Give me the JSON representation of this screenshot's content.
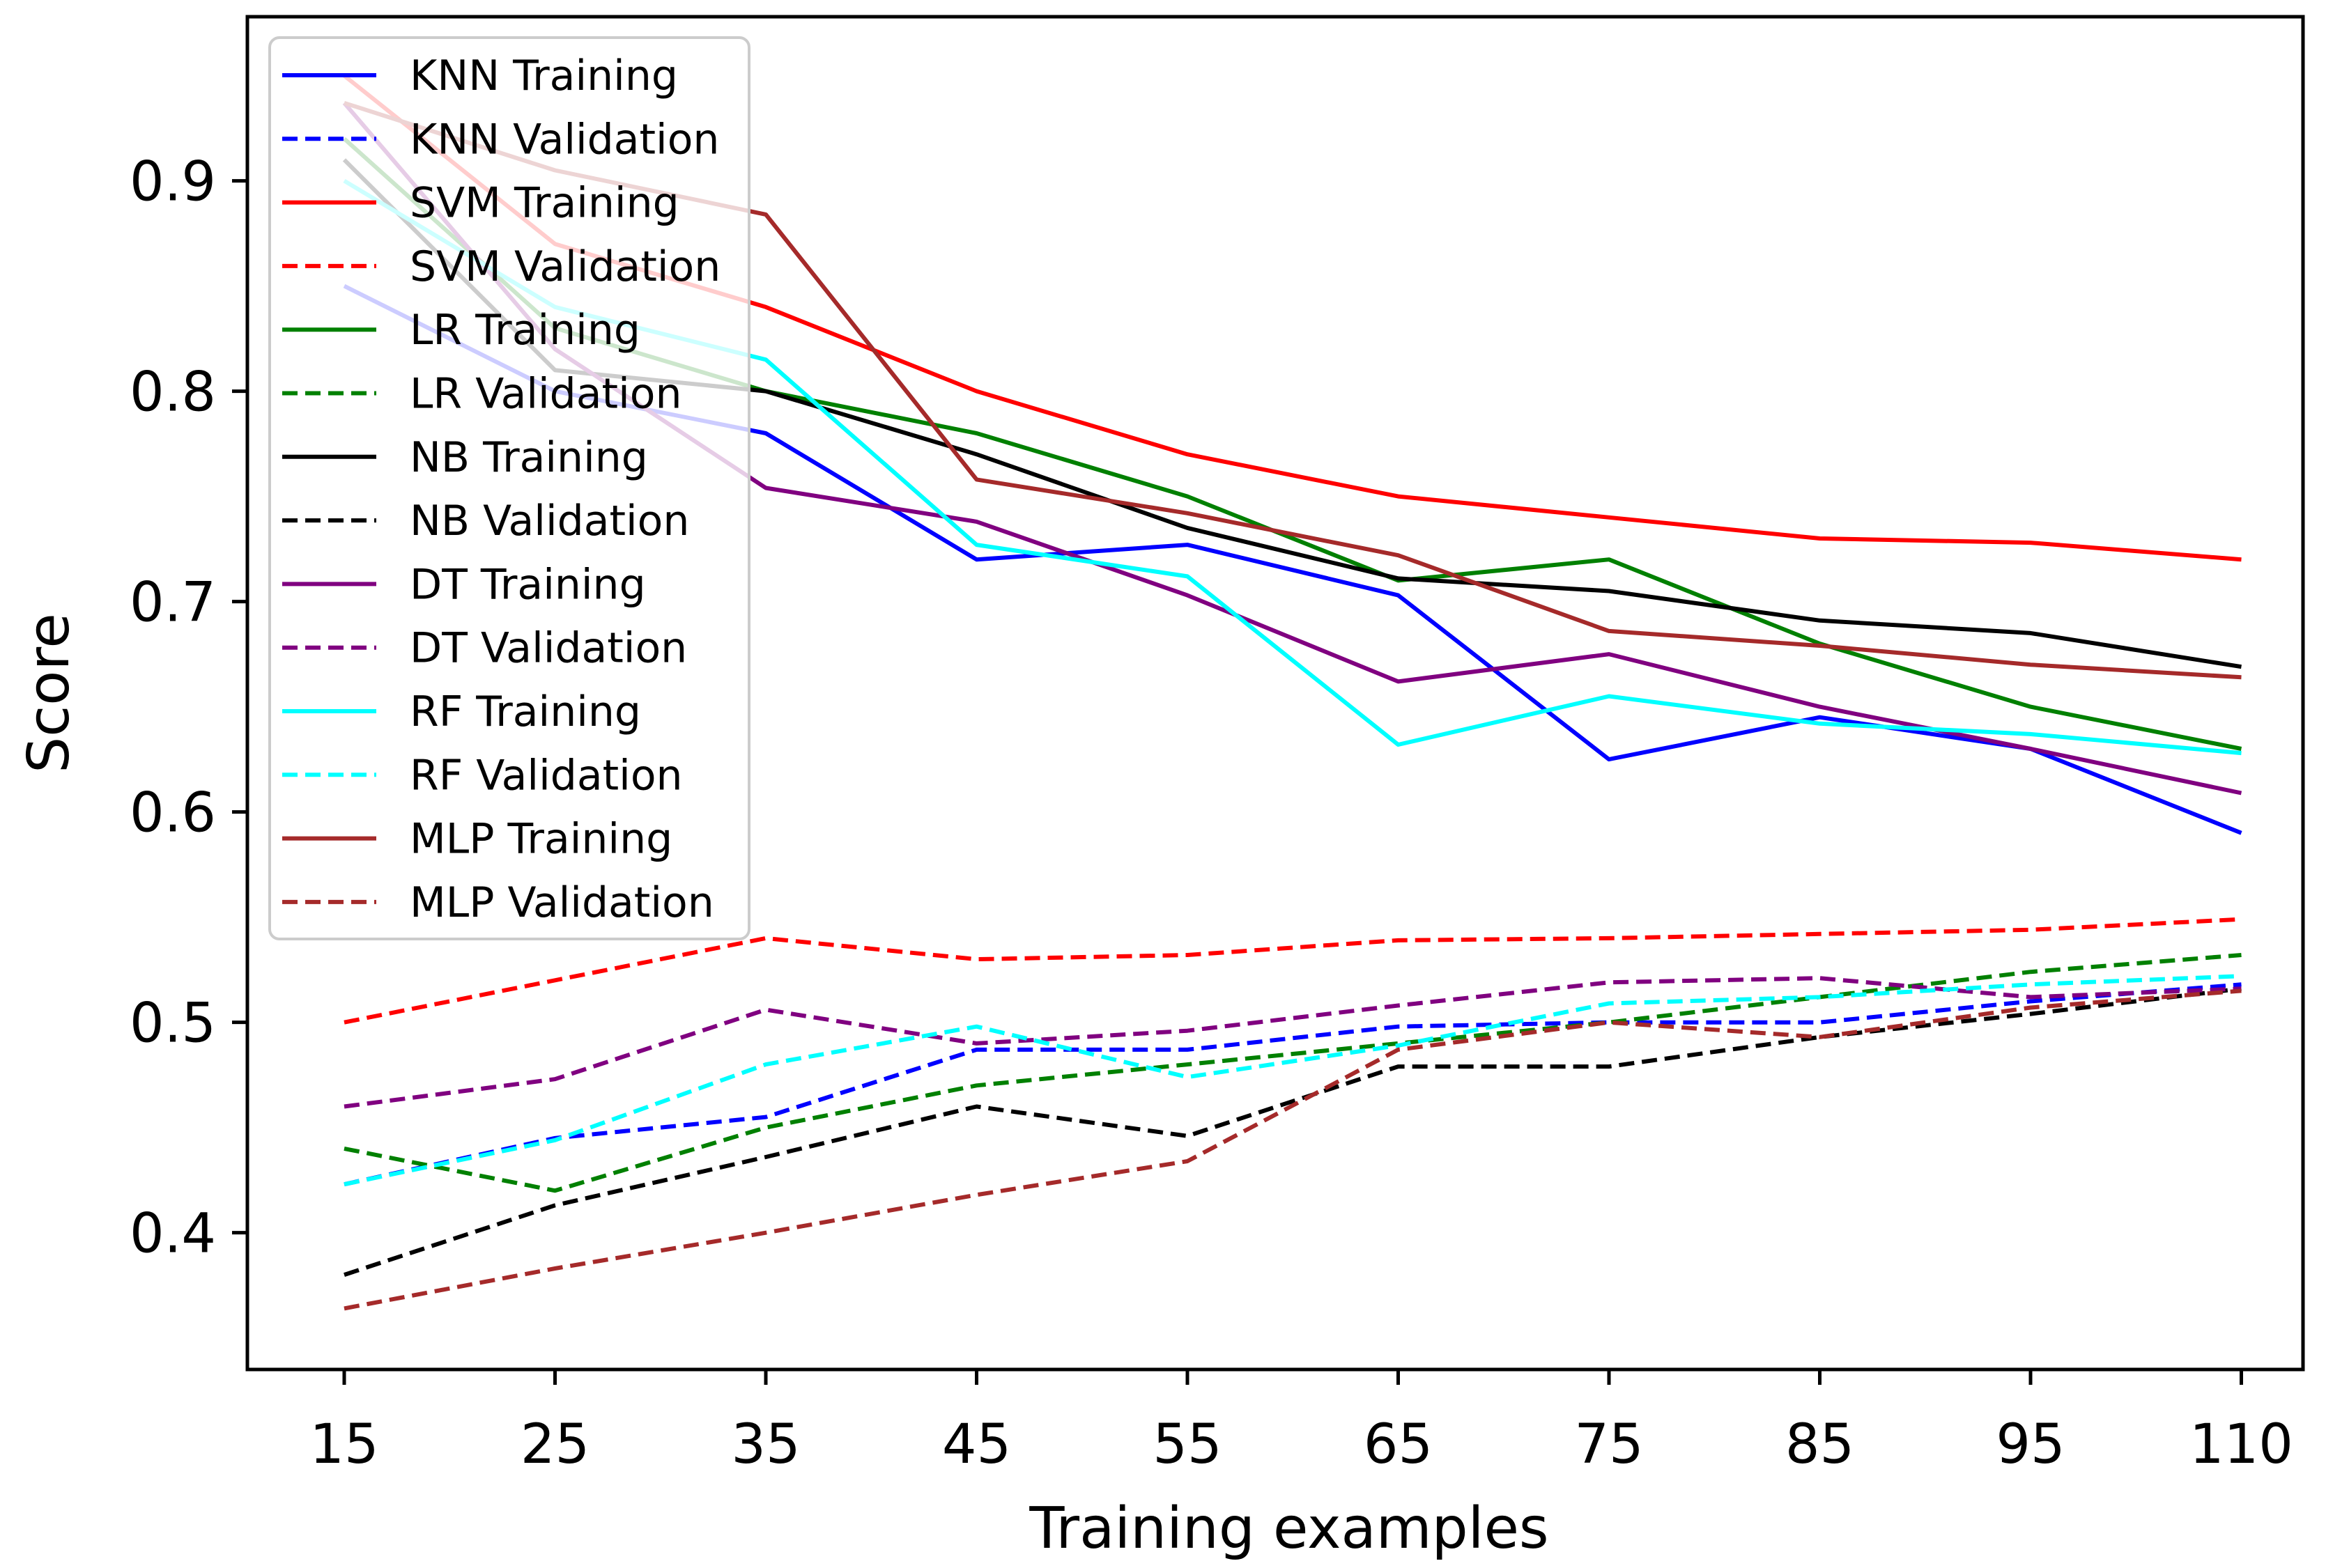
{
  "chart_data": {
    "type": "line",
    "title": "",
    "xlabel": "Training examples",
    "ylabel": "Score",
    "categories": [
      "15",
      "25",
      "35",
      "45",
      "55",
      "65",
      "75",
      "85",
      "95",
      "110"
    ],
    "y_ticks": [
      "0.4",
      "0.5",
      "0.6",
      "0.7",
      "0.8",
      "0.9"
    ],
    "ylim": [
      0.335,
      0.978
    ],
    "grid": false,
    "legend_position": "upper-left",
    "series": [
      {
        "name": "KNN Training",
        "color": "#0000ff",
        "style": "solid",
        "values": [
          0.85,
          0.8,
          0.78,
          0.72,
          0.727,
          0.703,
          0.625,
          0.645,
          0.63,
          0.59
        ]
      },
      {
        "name": "KNN Validation",
        "color": "#0000ff",
        "style": "dashed",
        "values": [
          0.423,
          0.445,
          0.455,
          0.487,
          0.487,
          0.498,
          0.5,
          0.5,
          0.51,
          0.518
        ]
      },
      {
        "name": "SVM Training",
        "color": "#ff0000",
        "style": "solid",
        "values": [
          0.95,
          0.87,
          0.84,
          0.8,
          0.77,
          0.75,
          0.74,
          0.73,
          0.728,
          0.72
        ]
      },
      {
        "name": "SVM Validation",
        "color": "#ff0000",
        "style": "dashed",
        "values": [
          0.5,
          0.52,
          0.54,
          0.53,
          0.532,
          0.539,
          0.54,
          0.542,
          0.544,
          0.549
        ]
      },
      {
        "name": "LR Training",
        "color": "#008000",
        "style": "solid",
        "values": [
          0.92,
          0.83,
          0.8,
          0.78,
          0.75,
          0.71,
          0.72,
          0.68,
          0.65,
          0.63
        ]
      },
      {
        "name": "LR Validation",
        "color": "#008000",
        "style": "dashed",
        "values": [
          0.44,
          0.42,
          0.45,
          0.47,
          0.48,
          0.49,
          0.5,
          0.512,
          0.524,
          0.532
        ]
      },
      {
        "name": "NB Training",
        "color": "#000000",
        "style": "solid",
        "values": [
          0.91,
          0.81,
          0.8,
          0.77,
          0.735,
          0.711,
          0.705,
          0.691,
          0.685,
          0.669
        ]
      },
      {
        "name": "NB Validation",
        "color": "#000000",
        "style": "dashed",
        "values": [
          0.38,
          0.413,
          0.436,
          0.46,
          0.446,
          0.479,
          0.479,
          0.493,
          0.504,
          0.516
        ]
      },
      {
        "name": "DT Training",
        "color": "#800080",
        "style": "solid",
        "values": [
          0.937,
          0.82,
          0.754,
          0.738,
          0.703,
          0.662,
          0.675,
          0.65,
          0.63,
          0.609
        ]
      },
      {
        "name": "DT Validation",
        "color": "#800080",
        "style": "dashed",
        "values": [
          0.46,
          0.473,
          0.506,
          0.49,
          0.496,
          0.508,
          0.519,
          0.521,
          0.512,
          0.516
        ]
      },
      {
        "name": "RF Training",
        "color": "#00ffff",
        "style": "solid",
        "values": [
          0.9,
          0.84,
          0.815,
          0.727,
          0.712,
          0.632,
          0.655,
          0.642,
          0.637,
          0.628
        ]
      },
      {
        "name": "RF Validation",
        "color": "#00ffff",
        "style": "dashed",
        "values": [
          0.423,
          0.444,
          0.48,
          0.498,
          0.474,
          0.489,
          0.509,
          0.512,
          0.518,
          0.522
        ]
      },
      {
        "name": "MLP Training",
        "color": "#a52a2a",
        "style": "solid",
        "values": [
          0.937,
          0.905,
          0.884,
          0.758,
          0.742,
          0.722,
          0.686,
          0.679,
          0.67,
          0.664
        ]
      },
      {
        "name": "MLP Validation",
        "color": "#a52a2a",
        "style": "dashed",
        "values": [
          0.364,
          0.383,
          0.4,
          0.418,
          0.434,
          0.487,
          0.5,
          0.493,
          0.507,
          0.515
        ]
      }
    ]
  }
}
